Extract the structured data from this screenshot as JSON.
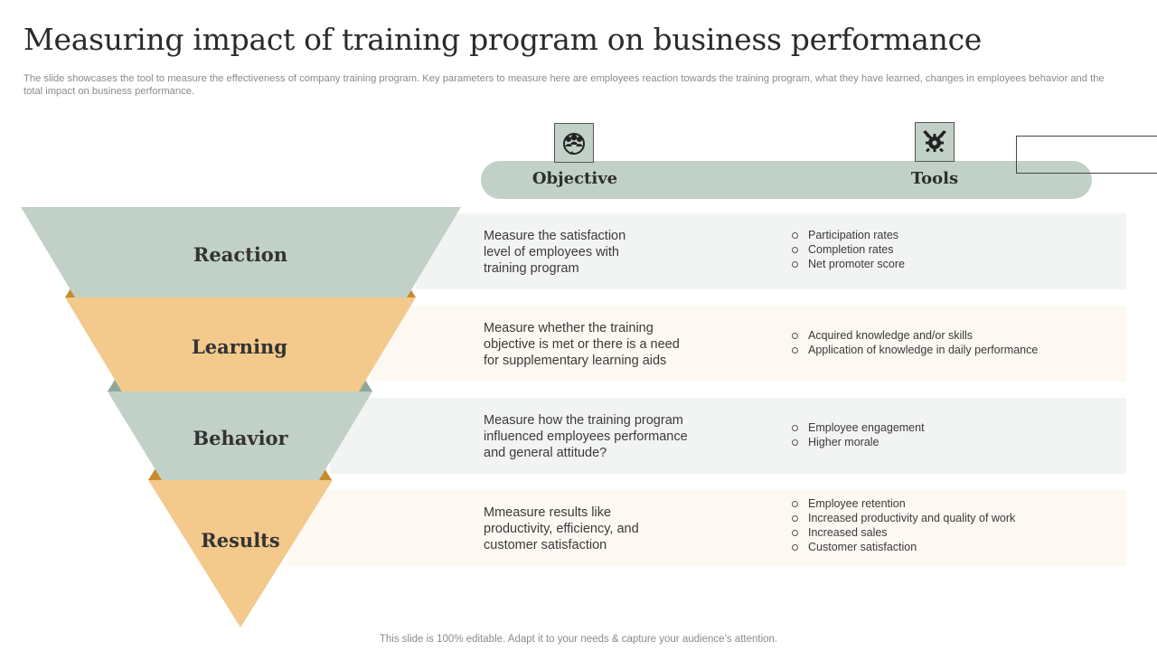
{
  "title": "Measuring impact of  training program on business performance",
  "subtitle": "The slide showcases the tool to measure the effectiveness of company training program. Key parameters to measure here are employees reaction towards the training program, what they have learned, changes in employees behavior and the total impact on business performance.",
  "header": {
    "objective_label": "Objective",
    "tools_label": "Tools",
    "objective_icon": "people-group-icon",
    "tools_icon": "tools-gear-icon"
  },
  "colors": {
    "green": "#c1d1c7",
    "orange": "#f3c98c",
    "green_dark": "#8fa79a",
    "orange_dark": "#c98a2e"
  },
  "stages": [
    {
      "label": "Reaction",
      "objective": "Measure the satisfaction level of employees with training program",
      "tools": [
        "Participation rates",
        "Completion rates",
        "Net promoter score"
      ]
    },
    {
      "label": "Learning",
      "objective": "Measure whether the training objective is met or there is a need for supplementary learning aids",
      "tools": [
        "Acquired knowledge and/or skills",
        "Application of knowledge in daily performance"
      ]
    },
    {
      "label": "Behavior",
      "objective": "Measure how the training program influenced employees performance and general attitude?",
      "tools": [
        "Employee engagement",
        "Higher morale"
      ]
    },
    {
      "label": "Results",
      "objective": "Mmeasure results like productivity, efficiency, and customer satisfaction",
      "tools": [
        "Employee retention",
        "Increased productivity and quality of work",
        "Increased sales",
        "Customer satisfaction"
      ]
    }
  ],
  "footer": "This slide is 100% editable. Adapt it to your needs & capture your audience’s attention."
}
